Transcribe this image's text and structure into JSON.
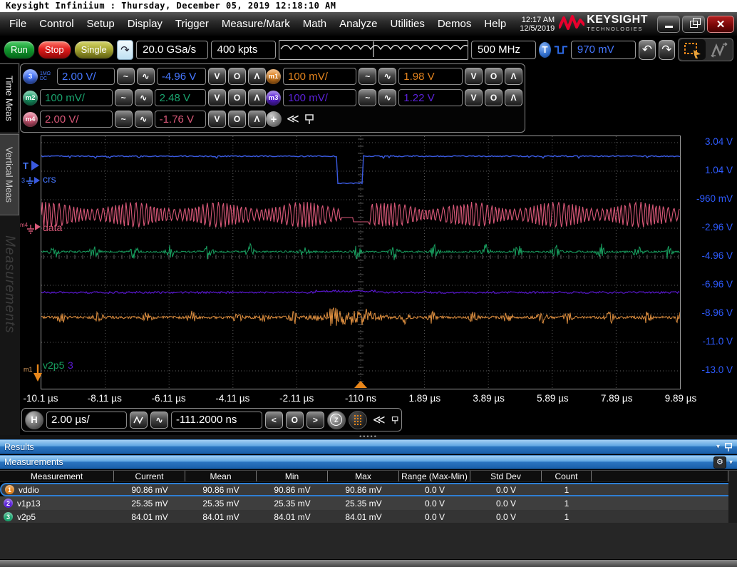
{
  "title_bar": {
    "text": "Keysight Infiniium : Thursday, December 05, 2019 12:18:10 AM"
  },
  "menu": {
    "items": [
      "File",
      "Control",
      "Setup",
      "Display",
      "Trigger",
      "Measure/Mark",
      "Math",
      "Analyze",
      "Utilities",
      "Demos",
      "Help"
    ],
    "clock_time": "12:17 AM",
    "clock_date": "12/5/2019",
    "brand": "KEYSIGHT",
    "brand_sub": "TECHNOLOGIES",
    "brand_color": "#e8002d"
  },
  "toolbar": {
    "run_label": "Run",
    "stop_label": "Stop",
    "single_label": "Single",
    "sample_rate": "20.0 GSa/s",
    "memory_depth": "400 kpts",
    "bandwidth": "500 MHz",
    "trigger_source": "T",
    "trigger_level": "970 mV",
    "trigger_level_color": "#4677ff"
  },
  "channels": [
    {
      "id": "3",
      "coupling_line1": "1MΩ",
      "coupling_line2": "DC",
      "scale": "2.00 V/",
      "offset": "-4.96 V",
      "color": "#4677ff"
    },
    {
      "id": "m1",
      "scale": "100 mV/",
      "offset": "1.98 V",
      "color": "#e0821e"
    },
    {
      "id": "m2",
      "scale": "100 mV/",
      "offset": "2.48 V",
      "color": "#1aa36e"
    },
    {
      "id": "m3",
      "scale": "100 mV/",
      "offset": "1.22 V",
      "color": "#5b21d8"
    },
    {
      "id": "m4",
      "scale": "2.00 V/",
      "offset": "-1.76 V",
      "color": "#d85878"
    }
  ],
  "sidebar": {
    "tab_time": "Time Meas",
    "tab_vertical": "Vertical Meas",
    "watermark": "Measurements"
  },
  "plot": {
    "y_labels": [
      "3.04 V",
      "1.04 V",
      "-960 mV",
      "-2.96 V",
      "-4.96 V",
      "-6.96 V",
      "-8.96 V",
      "-11.0 V",
      "-13.0 V"
    ],
    "x_labels": [
      "-10.1 µs",
      "-8.11 µs",
      "-6.11 µs",
      "-4.11 µs",
      "-2.11 µs",
      "-110 ns",
      "1.89 µs",
      "3.89 µs",
      "5.89 µs",
      "7.89 µs",
      "9.89 µs"
    ],
    "labels": {
      "trigger": "T",
      "ch3": "3",
      "crs": "crs",
      "data": "data",
      "m4": "m4",
      "m1": "m1",
      "v2p5": "v2p5",
      "overlap": "3"
    },
    "traces": {
      "crs_color": "#3a5ae0",
      "data_color": "#d85878",
      "v2p5_color": "#18a060",
      "v1p13_color": "#5a18d0",
      "vddio_color": "#e09040",
      "trigger_color": "#e8861a",
      "axis_label_color": "#2e5bff"
    }
  },
  "horizontal": {
    "knob": "H",
    "scale": "2.00 µs/",
    "position": "-111.2000 ns"
  },
  "results": {
    "title": "Results",
    "panel_title": "Measurements",
    "columns": [
      "Measurement",
      "Current",
      "Mean",
      "Min",
      "Max",
      "Range (Max-Min)",
      "Std Dev",
      "Count"
    ],
    "rows": [
      {
        "num": "1",
        "color": "#e0821e",
        "name": "vddio",
        "current": "90.86 mV",
        "mean": "90.86 mV",
        "min": "90.86 mV",
        "max": "90.86 mV",
        "range": "0.0 V",
        "std_dev": "0.0 V",
        "count": "1",
        "selected": true
      },
      {
        "num": "2",
        "color": "#5b21d8",
        "name": "v1p13",
        "current": "25.35 mV",
        "mean": "25.35 mV",
        "min": "25.35 mV",
        "max": "25.35 mV",
        "range": "0.0 V",
        "std_dev": "0.0 V",
        "count": "1",
        "selected": false
      },
      {
        "num": "3",
        "color": "#1aa36e",
        "name": "v2p5",
        "current": "84.01 mV",
        "mean": "84.01 mV",
        "min": "84.01 mV",
        "max": "84.01 mV",
        "range": "0.0 V",
        "std_dev": "0.0 V",
        "count": "1",
        "selected": false
      }
    ]
  }
}
